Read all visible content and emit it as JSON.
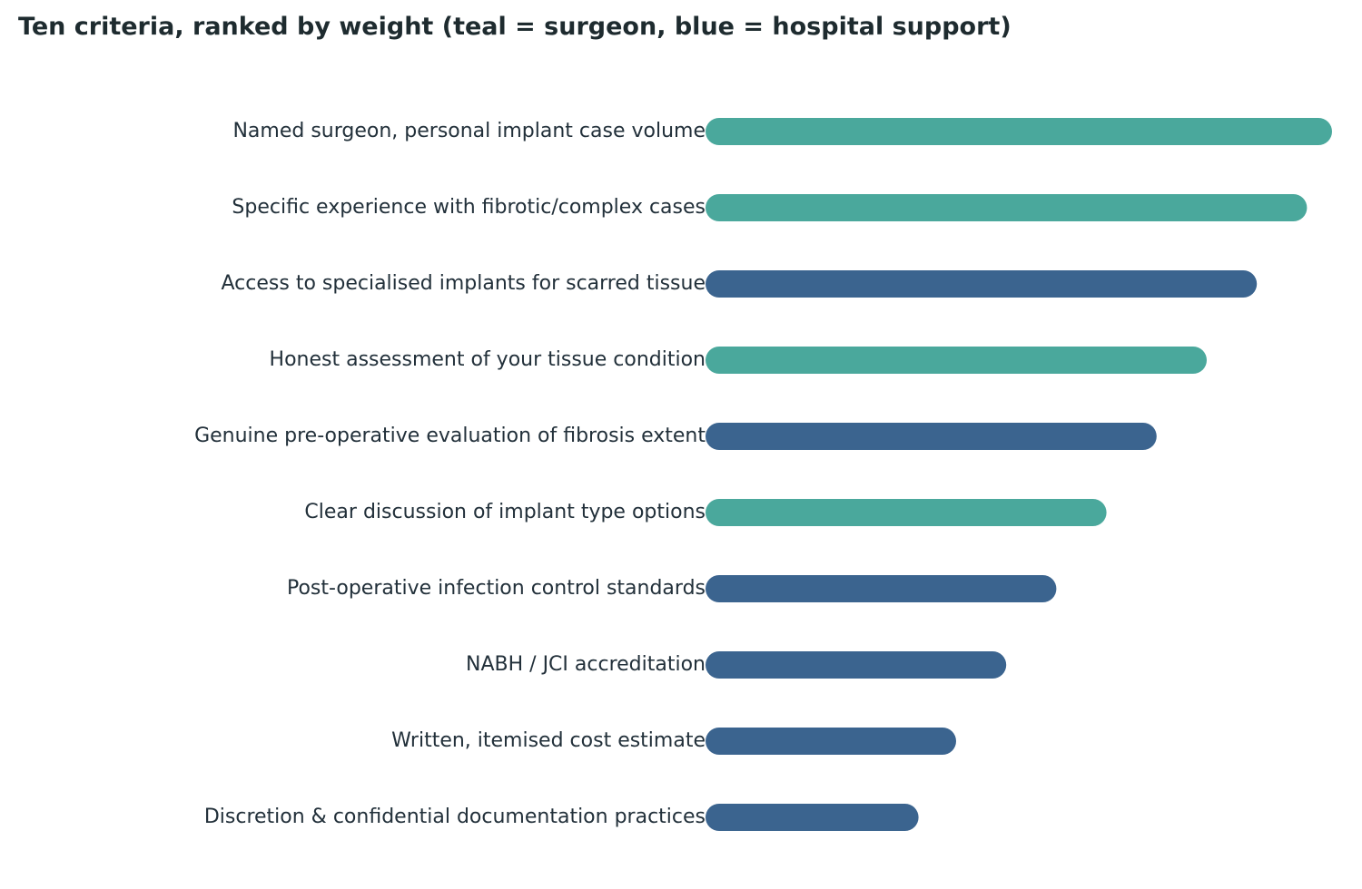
{
  "chart_data": {
    "type": "bar",
    "orientation": "horizontal",
    "title": "Ten criteria, ranked by weight (teal = surgeon, blue = hospital support)",
    "categories": [
      "Named surgeon, personal implant case volume",
      "Specific experience with fibrotic/complex cases",
      "Access to specialised implants for scarred tissue",
      "Honest assessment of your tissue condition",
      "Genuine pre-operative evaluation of fibrosis extent",
      "Clear discussion of implant type options",
      "Post-operative infection control standards",
      "NABH / JCI accreditation",
      "Written, itemised cost estimate",
      "Discretion & confidential documentation practices"
    ],
    "values": [
      10,
      9.6,
      8.8,
      8.0,
      7.2,
      6.4,
      5.6,
      4.8,
      4.0,
      3.4
    ],
    "groups": [
      "surgeon",
      "surgeon",
      "hospital",
      "surgeon",
      "hospital",
      "surgeon",
      "hospital",
      "hospital",
      "hospital",
      "hospital"
    ],
    "xlim": [
      0,
      10
    ],
    "grid": false,
    "legend": "none",
    "xlabel": "",
    "ylabel": ""
  },
  "colors": {
    "surgeon": "#4aa89c",
    "hospital": "#3b648f",
    "text": "#22303a"
  }
}
